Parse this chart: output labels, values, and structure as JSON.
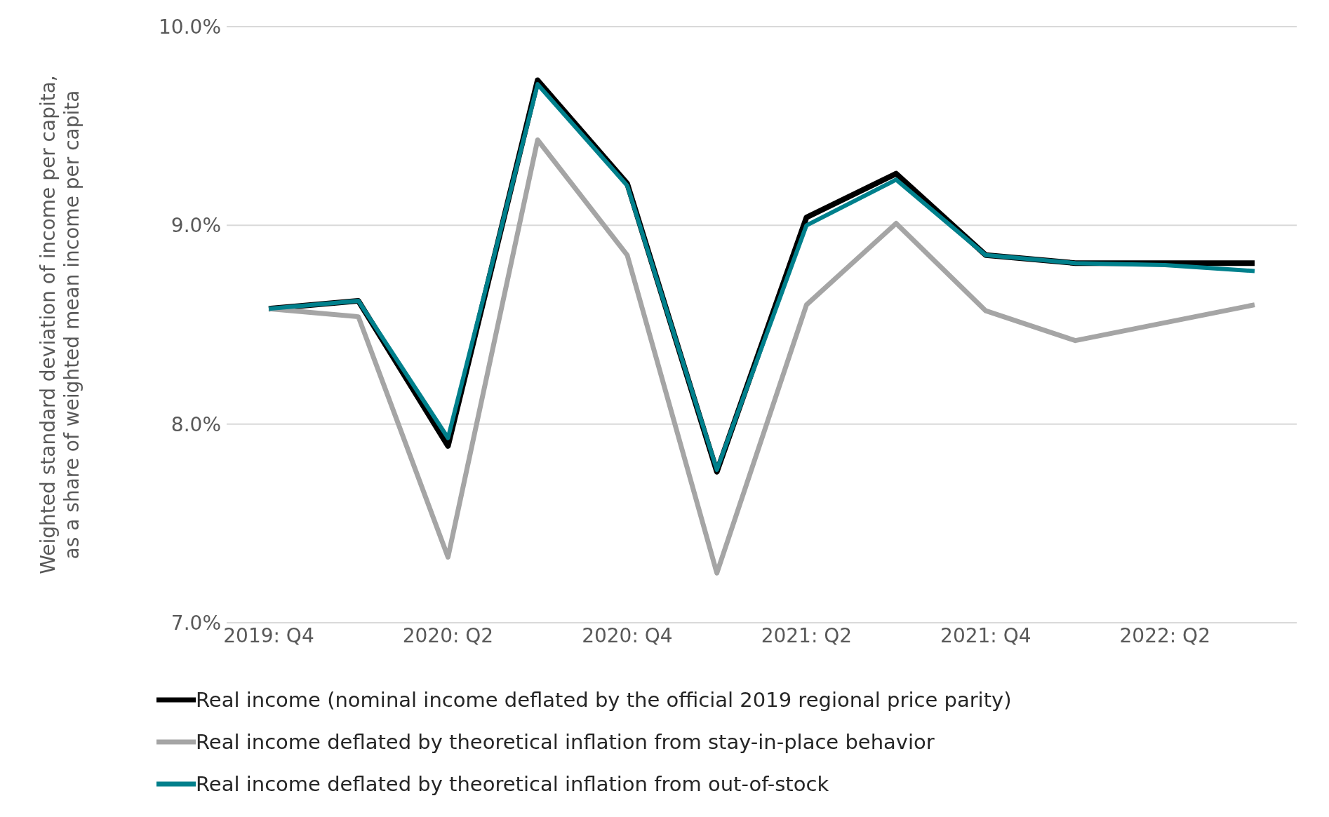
{
  "chart_data": {
    "type": "line",
    "ylabel": "Weighted standard deviation of income per capita, as a share of weighted mean income per capita",
    "categories": [
      "2019: Q4",
      null,
      "2020: Q2",
      null,
      "2020: Q4",
      null,
      "2021: Q2",
      null,
      "2021: Q4",
      null,
      "2022: Q2",
      null
    ],
    "series": [
      {
        "name": "Real income (nominal income deflated by the official 2019 regional price parity)",
        "color": "#000000",
        "values": [
          8.58,
          8.62,
          7.89,
          9.73,
          9.21,
          7.76,
          9.04,
          9.26,
          8.85,
          8.81,
          8.81,
          8.81
        ]
      },
      {
        "name": "Real income deflated by theoretical inflation from stay-in-place behavior",
        "color": "#a5a5a5",
        "values": [
          8.58,
          8.54,
          7.33,
          9.43,
          8.85,
          7.25,
          8.6,
          9.01,
          8.57,
          8.42,
          8.51,
          8.6
        ]
      },
      {
        "name": "Real income deflated by theoretical inflation from out-of-stock",
        "color": "#00808c",
        "values": [
          8.58,
          8.62,
          7.93,
          9.71,
          9.2,
          7.77,
          9.0,
          9.23,
          8.85,
          8.81,
          8.8,
          8.77
        ]
      }
    ],
    "ylim": [
      7,
      10
    ],
    "yticks": [
      {
        "value": 7,
        "label": "7.0%"
      },
      {
        "value": 8,
        "label": "8.0%"
      },
      {
        "value": 9,
        "label": "9.0%"
      },
      {
        "value": 10,
        "label": "10.0%"
      }
    ],
    "grid": "y",
    "legend": "bottom",
    "marker": "none",
    "line_style": "solid"
  }
}
